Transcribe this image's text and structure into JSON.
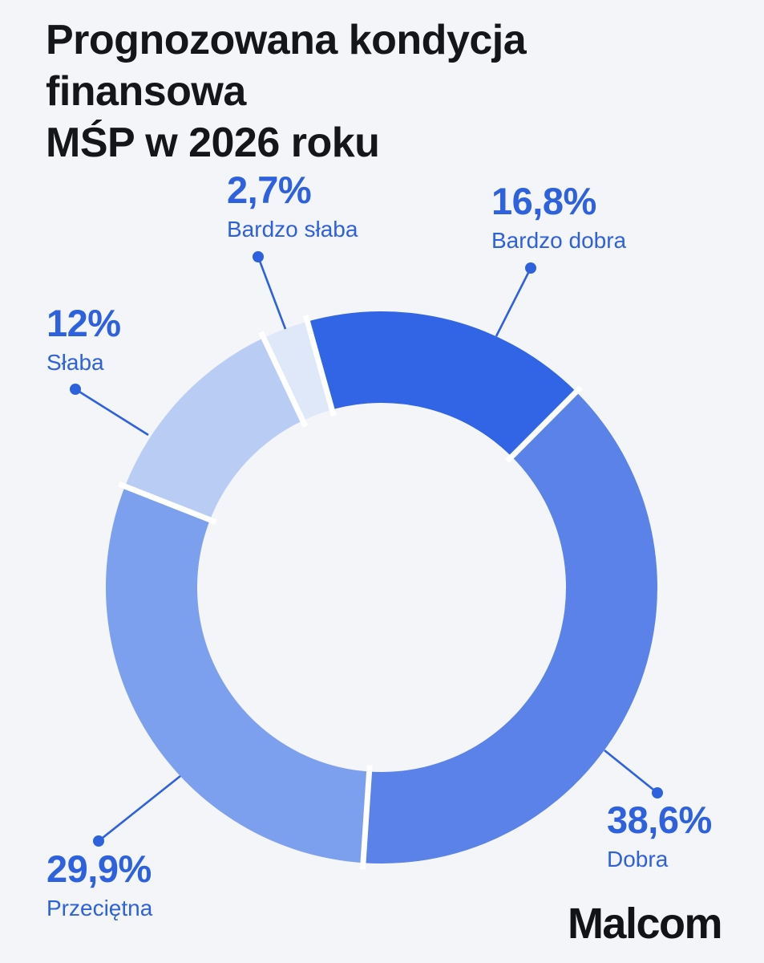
{
  "page": {
    "background": "#F4F5F8"
  },
  "header": {
    "title_line1": "Prognozowana kondycja finansowa",
    "title_line2": "MŚP w 2026 roku",
    "color": "#15161A"
  },
  "brand": {
    "name": "Malcom",
    "color": "#121316"
  },
  "colors": {
    "accent": "#2D61DE",
    "segment_gap": "#FFFFFF"
  },
  "chart_data": {
    "type": "pie",
    "subtype": "donut",
    "title": "Prognozowana kondycja finansowa MŚP w 2026 roku",
    "unit": "%",
    "direction": "clockwise",
    "start_angle_deg": -15.6,
    "labels": [
      "Bardzo dobra",
      "Dobra",
      "Przeciętna",
      "Słaba",
      "Bardzo słaba"
    ],
    "values": [
      16.8,
      38.6,
      29.9,
      12,
      2.7
    ],
    "value_labels": [
      "16,8%",
      "38,6%",
      "29,9%",
      "12%",
      "2,7%"
    ],
    "colors": [
      "#3165E5",
      "#5A82E8",
      "#7DA0EE",
      "#B9CCF3",
      "#DFE8F8"
    ],
    "legend_position": "callouts-around-chart",
    "grid": false
  }
}
